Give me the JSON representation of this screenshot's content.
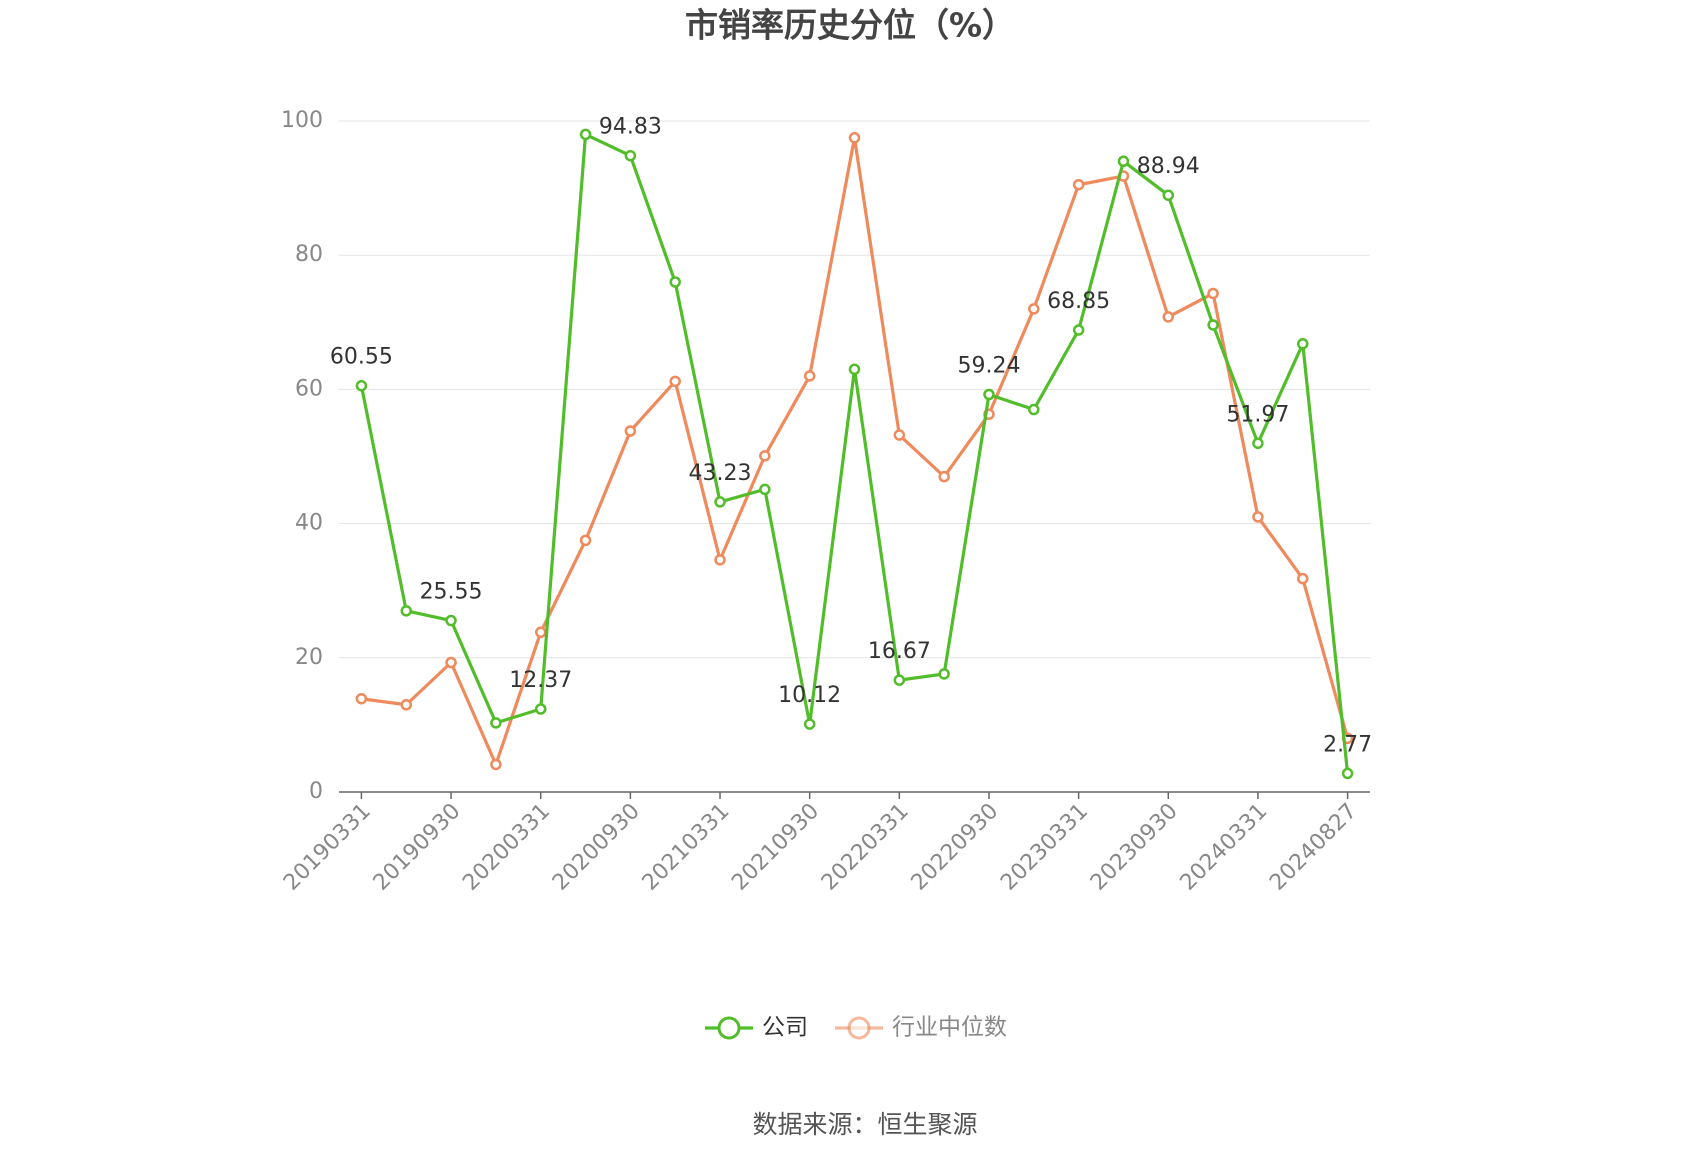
{
  "chart_data": {
    "type": "line",
    "title": "市销率历史分位（%）",
    "categories": [
      "20190331",
      null,
      "20190930",
      null,
      "20200331",
      null,
      "20200930",
      null,
      "20210331",
      null,
      "20210930",
      null,
      "20220331",
      null,
      "20220930",
      null,
      "20230331",
      null,
      "20230930",
      null,
      "20240331",
      null,
      "20240827"
    ],
    "series": [
      {
        "name": "公司",
        "color": "#52bd2a",
        "values": [
          60.55,
          27.0,
          25.55,
          10.3,
          12.37,
          98.0,
          94.83,
          76.0,
          43.23,
          45.1,
          10.12,
          63.0,
          16.67,
          17.6,
          59.24,
          57.0,
          68.85,
          94.0,
          88.94,
          69.6,
          51.97,
          66.8,
          2.77
        ],
        "value_labels": [
          "60.55",
          null,
          "25.55",
          null,
          "12.37",
          null,
          "94.83",
          null,
          "43.23",
          null,
          "10.12",
          null,
          "16.67",
          null,
          "59.24",
          null,
          "68.85",
          null,
          "88.94",
          null,
          "51.97",
          null,
          "2.77"
        ]
      },
      {
        "name": "行业中位数",
        "color": "#ee8a5c",
        "values": [
          13.9,
          13.0,
          19.3,
          4.1,
          23.8,
          37.5,
          53.8,
          61.2,
          34.6,
          50.1,
          62.0,
          97.5,
          53.2,
          47.0,
          56.3,
          72.0,
          90.5,
          91.8,
          70.8,
          74.3,
          41.0,
          31.8,
          8.0
        ]
      }
    ],
    "ylim": [
      0,
      100
    ],
    "yticks": [
      0,
      20,
      40,
      60,
      80,
      100
    ],
    "grid": true,
    "legend": "bottom",
    "source": "数据来源：恒生聚源"
  }
}
